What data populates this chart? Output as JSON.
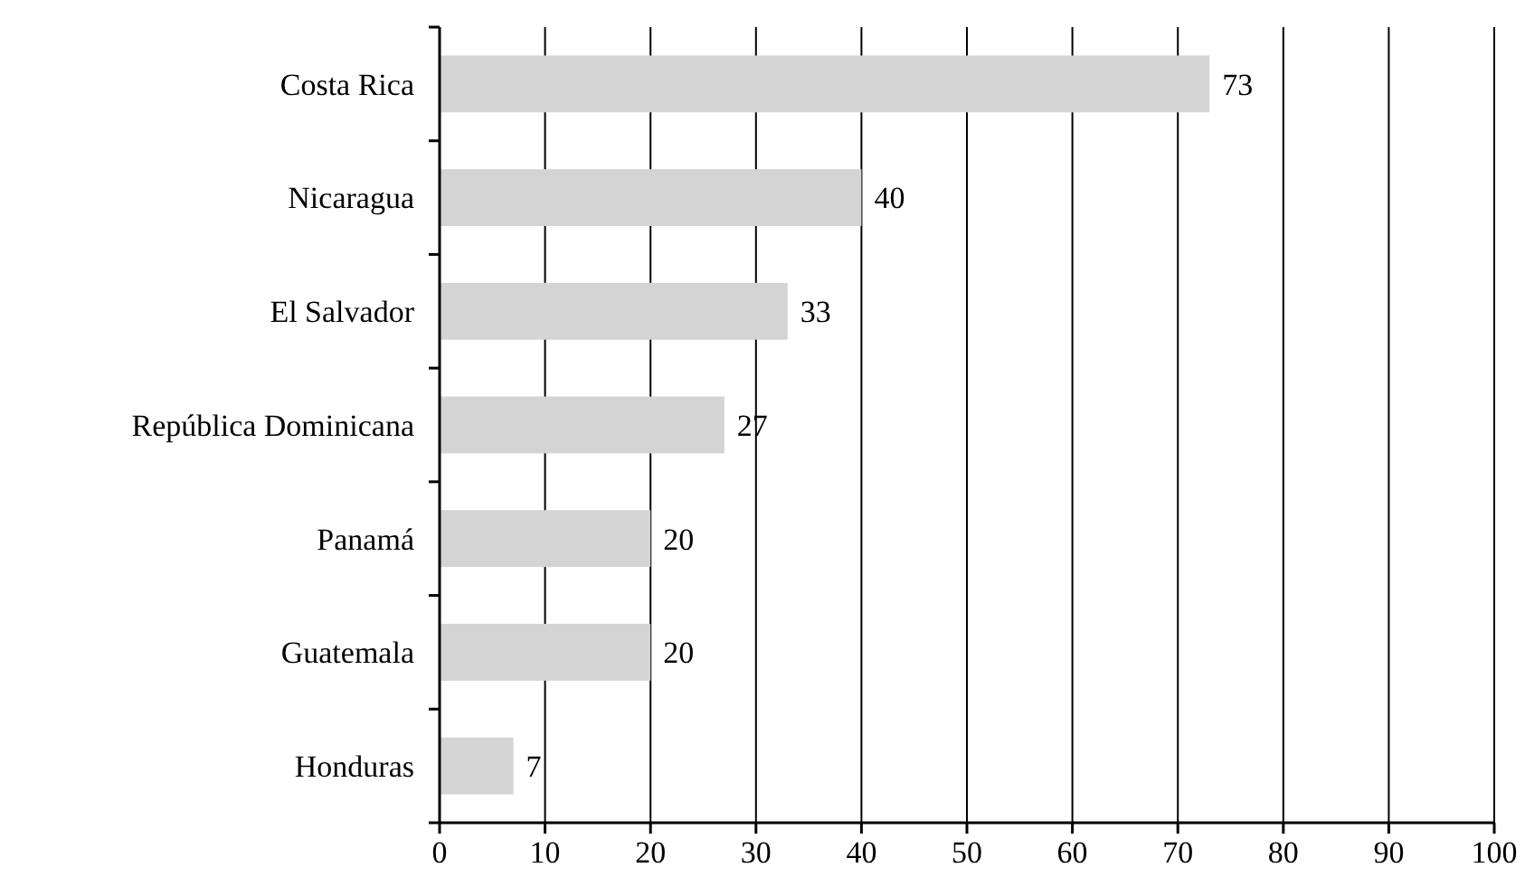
{
  "chart_data": {
    "type": "bar",
    "orientation": "horizontal",
    "categories": [
      "Costa Rica",
      "Nicaragua",
      "El Salvador",
      "República Dominicana",
      "Panamá",
      "Guatemala",
      "Honduras"
    ],
    "values": [
      73,
      40,
      33,
      27,
      20,
      20,
      7
    ],
    "color": "#d4d4d4",
    "xlim": [
      0,
      100
    ],
    "xticks": [
      0,
      10,
      20,
      30,
      40,
      50,
      60,
      70,
      80,
      90,
      100
    ],
    "grid": "x",
    "data_labels": true
  }
}
